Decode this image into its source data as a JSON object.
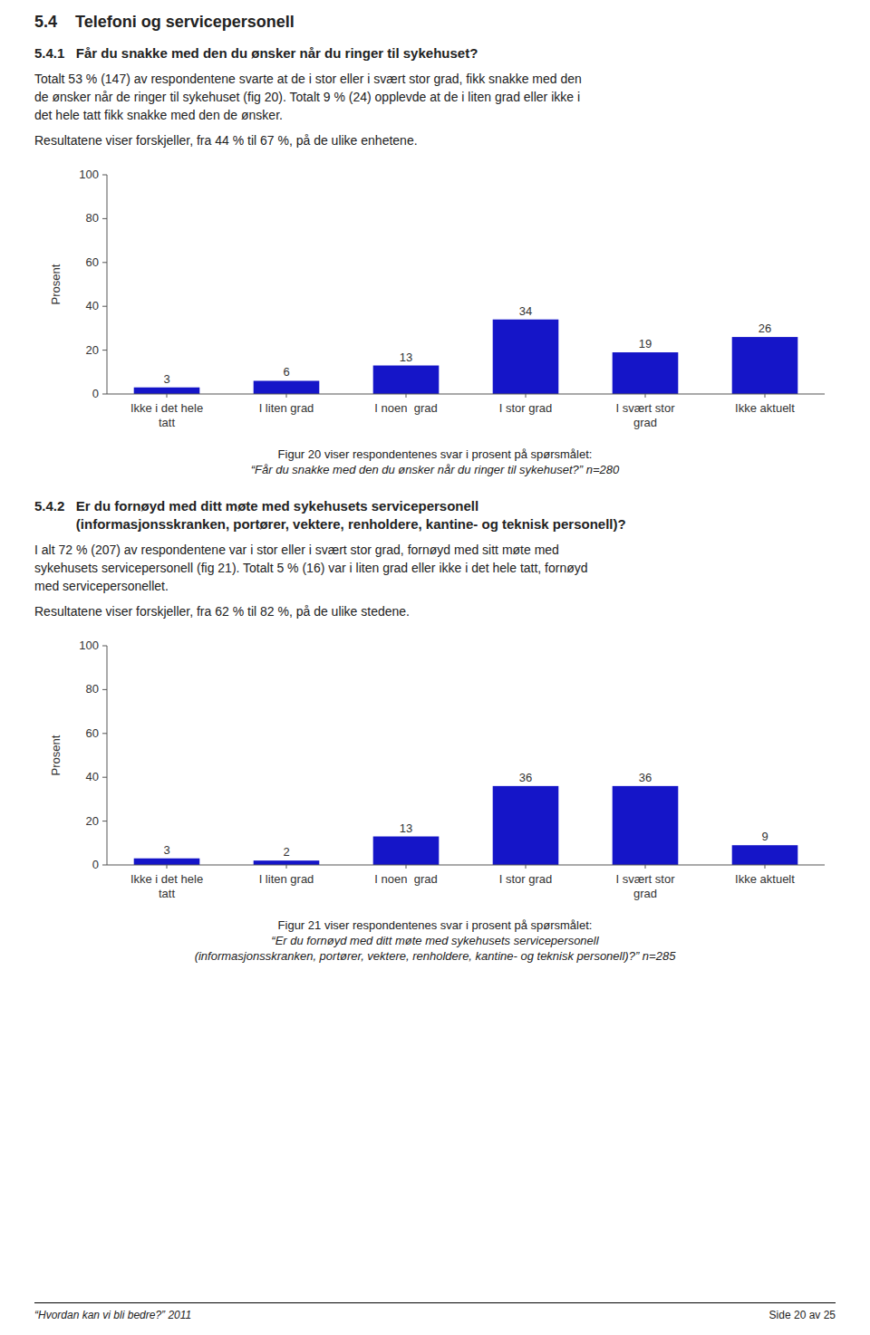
{
  "page_title": "5.4    Telefoni og servicepersonell",
  "sections": [
    {
      "title": [
        "5.4.1   Får du snakke med den du ønsker når du ringer til sykehuset?"
      ],
      "paragraphs": [
        [
          "Totalt 53 % (147) av respondentene svarte at de i stor eller i svært stor grad, fikk snakke med den",
          "de ønsker når de ringer til sykehuset (fig 20). Totalt 9 % (24) opplevde at de i liten grad eller ikke i",
          "det hele tatt fikk snakke med den de ønsker."
        ],
        [
          "Resultatene viser forskjeller, fra 44 % til 67 %, på de ulike enhetene."
        ]
      ],
      "caption": [
        "Figur 20 viser respondentenes svar i prosent på spørsmålet:",
        "“Får du snakke med den du ønsker når du ringer til sykehuset?” n=280"
      ]
    },
    {
      "title": [
        "5.4.2   Er du fornøyd med ditt møte med sykehusets servicepersonell",
        "           (informasjonsskranken, portører, vektere, renholdere, kantine- og teknisk personell)?"
      ],
      "paragraphs": [
        [
          "I alt 72 % (207) av respondentene var i stor eller i svært stor grad, fornøyd med sitt møte med",
          "sykehusets servicepersonell (fig 21). Totalt 5 % (16) var i liten grad eller ikke i det hele tatt, fornøyd",
          "med servicepersonellet."
        ],
        [
          "Resultatene viser forskjeller, fra 62 % til 82 %, på de ulike stedene."
        ]
      ],
      "caption": [
        "Figur 21 viser respondentenes svar i prosent på spørsmålet:",
        "“Er du fornøyd med ditt møte med sykehusets servicepersonell",
        "(informasjonsskranken, portører, vektere, renholdere, kantine- og teknisk personell)?” n=285"
      ]
    }
  ],
  "chart_data": [
    {
      "type": "bar",
      "categories": [
        "Ikke i det hele\ntatt",
        "I liten grad",
        "I noen  grad",
        "I stor grad",
        "I svært stor\ngrad",
        "Ikke aktuelt"
      ],
      "values": [
        3,
        6,
        13,
        34,
        19,
        26
      ],
      "color": "#1515c8",
      "ylabel": "Prosent",
      "ylim": [
        0,
        100
      ],
      "yticks": [
        0,
        20,
        40,
        60,
        80,
        100
      ],
      "data_labels": true,
      "grid": false
    },
    {
      "type": "bar",
      "categories": [
        "Ikke i det hele\ntatt",
        "I liten grad",
        "I noen  grad",
        "I stor grad",
        "I svært stor\ngrad",
        "Ikke aktuelt"
      ],
      "values": [
        3,
        2,
        13,
        36,
        36,
        9
      ],
      "color": "#1515c8",
      "ylabel": "Prosent",
      "ylim": [
        0,
        100
      ],
      "yticks": [
        0,
        20,
        40,
        60,
        80,
        100
      ],
      "data_labels": true,
      "grid": false
    }
  ],
  "footer_left": "“Hvordan kan vi bli bedre?” 2011",
  "footer_right": "Side 20 av 25"
}
